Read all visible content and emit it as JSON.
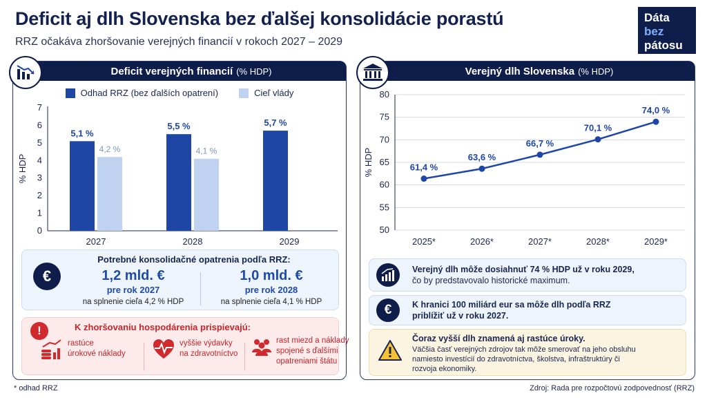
{
  "title": "Deficit aj dlh Slovenska bez ďalšej konsolidácie porastú",
  "subtitle": "RRZ očakáva zhoršovanie verejných financií v rokoch 2027 – 2029",
  "logo": {
    "line1": "Dáta",
    "line2": "bez",
    "line3": "pátosu"
  },
  "colors": {
    "navy": "#0f1d4a",
    "series_dark": "#1e46a5",
    "series_light": "#bfd2f0",
    "red": "#c8242a"
  },
  "left_panel": {
    "header": "Deficit verejných financií",
    "header_unit": "(% HDP)",
    "icon": "chart-down-icon",
    "consolidation": {
      "title": "Potrebné konsolidačné opatrenia podľa RRZ:",
      "icon": "euro-icon",
      "items": [
        {
          "amount": "1,2 mld. €",
          "year": "pre rok 2027",
          "note": "na splnenie cieľa 4,2 % HDP"
        },
        {
          "amount": "1,0 mld. €",
          "year": "pre rok 2028",
          "note": "na splnenie cieľa 4,1 % HDP"
        }
      ]
    },
    "risks": {
      "title": "K zhoršovaniu hospodárenia prispievajú:",
      "icon": "exclamation-icon",
      "exclamation": "!",
      "items": [
        {
          "icon": "coins-growth-icon",
          "line1": "rastúce",
          "line2": "úrokové náklady",
          "line3": ""
        },
        {
          "icon": "heart-pulse-icon",
          "line1": "vyššie výdavky",
          "line2": "na zdravotníctvo",
          "line3": ""
        },
        {
          "icon": "people-icon",
          "line1": "rast miezd a náklady",
          "line2": "spojené s ďalšími",
          "line3": "opatreniami štátu"
        }
      ]
    }
  },
  "right_panel": {
    "header": "Verejný dlh Slovenska",
    "header_unit": "(% HDP)",
    "icon": "bank-icon",
    "info": [
      {
        "icon": "chart-up-icon",
        "line1": "Verejný dlh môže dosiahnuť 74 % HDP už v roku 2029,",
        "line2": "čo by predstavovalo historické maximum."
      },
      {
        "icon": "euro-icon",
        "line1": "K hranici 100 miliárd eur sa môže dlh podľa RRZ",
        "line2": "priblížiť už v roku 2027."
      }
    ],
    "warning": {
      "icon": "warning-icon",
      "title": "Čoraz vyšší dlh znamená aj rastúce úroky.",
      "line1": "Väčšia časť verejných zdrojov tak môže smerovať na jeho obsluhu",
      "line2": "namiesto investícií do zdravotníctva, školstva, infraštruktúry či",
      "line3": "rozvoja ekonomiky."
    }
  },
  "footnote": "* odhad RRZ",
  "source": "Zdroj: Rada pre rozpočtovú zodpovednosť (RRZ)",
  "chart_data": [
    {
      "type": "bar",
      "categories": [
        "2027",
        "2028",
        "2029"
      ],
      "series": [
        {
          "name": "Odhad RRZ (bez ďalších opatrení)",
          "values": [
            5.1,
            5.5,
            5.7
          ],
          "labels": [
            "5,1 %",
            "5,5 %",
            "5,7 %"
          ],
          "color": "#1e46a5"
        },
        {
          "name": "Cieľ vlády",
          "values": [
            4.2,
            4.1,
            null
          ],
          "labels": [
            "4,2 %",
            "4,1 %",
            ""
          ],
          "color": "#bfd2f0"
        }
      ],
      "ylabel": "% HDP",
      "ylim": [
        0,
        7
      ],
      "yticks": [
        "0",
        "1",
        "2",
        "3",
        "4",
        "5",
        "6",
        "7"
      ],
      "legend": "top",
      "grid": false
    },
    {
      "type": "line",
      "categories": [
        "2025*",
        "2026*",
        "2027*",
        "2028*",
        "2029*"
      ],
      "series": [
        {
          "values": [
            61.4,
            63.6,
            66.7,
            70.1,
            74.0
          ],
          "labels": [
            "61,4 %",
            "63,6 %",
            "66,7 %",
            "70,1 %",
            "74,0 %"
          ],
          "color": "#1e46a5"
        }
      ],
      "ylabel": "% HDP",
      "ylim": [
        50,
        80
      ],
      "yticks": [
        "50",
        "55",
        "60",
        "65",
        "70",
        "75",
        "80"
      ],
      "grid": true
    }
  ]
}
